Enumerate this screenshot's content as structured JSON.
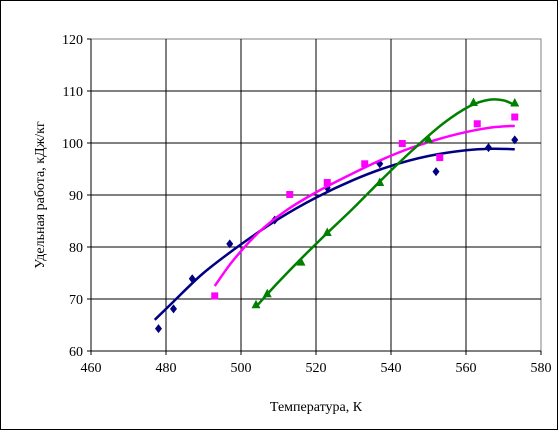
{
  "chart_data": {
    "type": "scatter",
    "title": "",
    "xlabel": "Температура, К",
    "ylabel": "Удельная работа, кДж/кг",
    "xlim": [
      460,
      580
    ],
    "ylim": [
      60,
      120
    ],
    "xticks": [
      460,
      480,
      500,
      520,
      540,
      560,
      580
    ],
    "yticks": [
      60,
      70,
      80,
      90,
      100,
      110,
      120
    ],
    "grid": true,
    "legend": "none",
    "series": [
      {
        "color": "#000080",
        "marker": "diamond",
        "points": [
          [
            478,
            64.3
          ],
          [
            482,
            68.1
          ],
          [
            487,
            73.9
          ],
          [
            497,
            80.6
          ],
          [
            509,
            85.2
          ],
          [
            523,
            91.4
          ],
          [
            537,
            96.0
          ],
          [
            552,
            94.5
          ],
          [
            566,
            99.1
          ],
          [
            573,
            100.6
          ]
        ],
        "trend": [
          [
            477,
            66
          ],
          [
            482,
            69.5
          ],
          [
            490,
            75
          ],
          [
            500,
            80.5
          ],
          [
            510,
            85.4
          ],
          [
            520,
            89.5
          ],
          [
            530,
            92.9
          ],
          [
            540,
            95.6
          ],
          [
            550,
            97.5
          ],
          [
            560,
            98.6
          ],
          [
            567,
            98.9
          ],
          [
            573,
            98.8
          ]
        ]
      },
      {
        "color": "#ff00ff",
        "marker": "square",
        "points": [
          [
            493,
            70.6
          ],
          [
            513,
            90.1
          ],
          [
            523,
            92.4
          ],
          [
            533,
            96.0
          ],
          [
            543,
            99.9
          ],
          [
            553,
            97.2
          ],
          [
            563,
            103.7
          ],
          [
            573,
            105.0
          ]
        ],
        "trend": [
          [
            493,
            72.5
          ],
          [
            498,
            77.5
          ],
          [
            505,
            83
          ],
          [
            512,
            87
          ],
          [
            520,
            90.5
          ],
          [
            528,
            93.5
          ],
          [
            536,
            96.3
          ],
          [
            544,
            98.7
          ],
          [
            552,
            100.6
          ],
          [
            560,
            102.1
          ],
          [
            567,
            103.0
          ],
          [
            573,
            103.3
          ]
        ]
      },
      {
        "color": "#008000",
        "marker": "triangle",
        "points": [
          [
            504,
            68.9
          ],
          [
            507,
            71.0
          ],
          [
            516,
            77.1
          ],
          [
            523,
            82.8
          ],
          [
            537,
            92.4
          ],
          [
            550,
            100.7
          ],
          [
            562,
            107.8
          ],
          [
            573,
            107.7
          ]
        ],
        "trend": [
          [
            504,
            68.5
          ],
          [
            509,
            72.5
          ],
          [
            515,
            77
          ],
          [
            522,
            82
          ],
          [
            530,
            87.5
          ],
          [
            538,
            93.3
          ],
          [
            546,
            98.8
          ],
          [
            554,
            103.8
          ],
          [
            561,
            107.1
          ],
          [
            566,
            108.3
          ],
          [
            570,
            108.2
          ],
          [
            573,
            107.3
          ]
        ]
      }
    ]
  }
}
